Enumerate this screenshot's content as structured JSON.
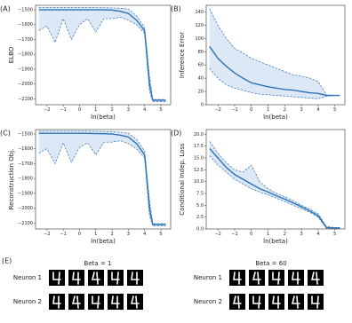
{
  "chart_data": [
    {
      "type": "line",
      "panel_label": "(A)",
      "xlabel": "ln(beta)",
      "ylabel": "ELBO",
      "band_color": "#dde8f6",
      "x": [
        -2.5,
        -2,
        -1.5,
        -1,
        -0.5,
        0,
        0.5,
        1,
        1.5,
        2,
        2.5,
        3,
        3.5,
        4,
        4.3,
        4.5,
        5,
        5.3
      ],
      "series": [
        {
          "color": "#2c72b5",
          "dash": false,
          "values": [
            -1500,
            -1500,
            -1500,
            -1500,
            -1500,
            -1500,
            -1500,
            -1500,
            -1500,
            -1502,
            -1510,
            -1525,
            -1570,
            -1640,
            -2000,
            -2110,
            -2110,
            -2110
          ]
        },
        {
          "color": "#2c72b5",
          "dash": true,
          "values": [
            -1485,
            -1485,
            -1485,
            -1485,
            -1485,
            -1485,
            -1485,
            -1485,
            -1486,
            -1487,
            -1490,
            -1495,
            -1540,
            -1620,
            -1950,
            -2105,
            -2105,
            -2105
          ]
        },
        {
          "color": "#2c72b5",
          "dash": true,
          "values": [
            -1640,
            -1610,
            -1720,
            -1560,
            -1700,
            -1600,
            -1560,
            -1650,
            -1560,
            -1560,
            -1550,
            -1570,
            -1600,
            -1660,
            -2050,
            -2120,
            -2120,
            -2120
          ]
        }
      ],
      "xlim": [
        -2.7,
        5.6
      ],
      "ylim": [
        -2140,
        -1470
      ],
      "xticks": [
        {
          "value": -2,
          "label": "−2"
        },
        {
          "value": -1,
          "label": "−1"
        },
        0,
        1,
        2,
        3,
        4,
        5
      ],
      "yticks": [
        {
          "value": -2100,
          "label": "−2100"
        },
        {
          "value": -2000,
          "label": "−2000"
        },
        {
          "value": -1900,
          "label": "−1900"
        },
        {
          "value": -1800,
          "label": "−1800"
        },
        {
          "value": -1700,
          "label": "−1700"
        },
        {
          "value": -1600,
          "label": "−1600"
        },
        {
          "value": -1500,
          "label": "−1500"
        }
      ]
    },
    {
      "type": "line",
      "panel_label": "(B)",
      "xlabel": "ln(beta)",
      "ylabel": "Inference Error",
      "band_color": "#dde8f6",
      "x": [
        -2.5,
        -2,
        -1.5,
        -1,
        -0.5,
        0,
        0.5,
        1,
        1.5,
        2,
        2.5,
        3,
        3.5,
        4,
        4.5,
        5,
        5.3
      ],
      "series": [
        {
          "color": "#2c72b5",
          "dash": false,
          "values": [
            88,
            70,
            58,
            48,
            40,
            33,
            30,
            27,
            25,
            23,
            22,
            20,
            18,
            17,
            14,
            14,
            14
          ]
        },
        {
          "color": "#2c72b5",
          "dash": true,
          "values": [
            145,
            120,
            100,
            85,
            78,
            70,
            65,
            60,
            55,
            50,
            45,
            43,
            40,
            35,
            15,
            14,
            14
          ]
        },
        {
          "color": "#2c72b5",
          "dash": true,
          "values": [
            55,
            40,
            30,
            25,
            22,
            18,
            16,
            15,
            14,
            13,
            12,
            11,
            10,
            9,
            13,
            14,
            14
          ]
        }
      ],
      "xlim": [
        -2.7,
        5.6
      ],
      "ylim": [
        0,
        150
      ],
      "xticks": [
        {
          "value": -2,
          "label": "−2"
        },
        {
          "value": -1,
          "label": "−1"
        },
        0,
        1,
        2,
        3,
        4,
        5
      ],
      "yticks": [
        0,
        20,
        40,
        60,
        80,
        100,
        120,
        140
      ]
    },
    {
      "type": "line",
      "panel_label": "(C)",
      "xlabel": "ln(beta)",
      "ylabel": "Reconstruction Obj.",
      "band_color": "#dde8f6",
      "x": [
        -2.5,
        -2,
        -1.5,
        -1,
        -0.5,
        0,
        0.5,
        1,
        1.5,
        2,
        2.5,
        3,
        3.5,
        4,
        4.3,
        4.5,
        5,
        5.3
      ],
      "series": [
        {
          "color": "#2c72b5",
          "dash": false,
          "values": [
            -1495,
            -1495,
            -1495,
            -1495,
            -1495,
            -1495,
            -1496,
            -1497,
            -1498,
            -1500,
            -1508,
            -1520,
            -1565,
            -1640,
            -2000,
            -2110,
            -2110,
            -2110
          ]
        },
        {
          "color": "#2c72b5",
          "dash": true,
          "values": [
            -1480,
            -1480,
            -1480,
            -1480,
            -1480,
            -1480,
            -1481,
            -1482,
            -1483,
            -1485,
            -1488,
            -1495,
            -1535,
            -1615,
            -1950,
            -2105,
            -2105,
            -2105
          ]
        },
        {
          "color": "#2c72b5",
          "dash": true,
          "values": [
            -1630,
            -1600,
            -1700,
            -1560,
            -1690,
            -1590,
            -1560,
            -1640,
            -1555,
            -1555,
            -1545,
            -1565,
            -1600,
            -1660,
            -2050,
            -2120,
            -2120,
            -2120
          ]
        }
      ],
      "xlim": [
        -2.7,
        5.6
      ],
      "ylim": [
        -2140,
        -1470
      ],
      "xticks": [
        {
          "value": -2,
          "label": "−2"
        },
        {
          "value": -1,
          "label": "−1"
        },
        0,
        1,
        2,
        3,
        4,
        5
      ],
      "yticks": [
        {
          "value": -2100,
          "label": "−2100"
        },
        {
          "value": -2000,
          "label": "−2000"
        },
        {
          "value": -1900,
          "label": "−1900"
        },
        {
          "value": -1800,
          "label": "−1800"
        },
        {
          "value": -1700,
          "label": "−1700"
        },
        {
          "value": -1600,
          "label": "−1600"
        },
        {
          "value": -1500,
          "label": "−1500"
        }
      ]
    },
    {
      "type": "line",
      "panel_label": "(D)",
      "xlabel": "ln(beta)",
      "ylabel": "Conditional Indep. Loss",
      "band_color": "#dde8f6",
      "x": [
        -2.5,
        -2,
        -1.5,
        -1,
        -0.5,
        0,
        0.5,
        1,
        1.5,
        2,
        2.5,
        3,
        3.5,
        4,
        4.5,
        5,
        5.3
      ],
      "series": [
        {
          "color": "#2c72b5",
          "dash": false,
          "values": [
            17,
            15,
            13,
            11.5,
            10.5,
            9.5,
            8.5,
            7.8,
            7,
            6.3,
            5.5,
            4.7,
            3.8,
            2.8,
            0.3,
            0.2,
            0.2
          ]
        },
        {
          "color": "#2c72b5",
          "dash": true,
          "values": [
            18.5,
            16,
            14,
            12.5,
            12,
            13.5,
            10,
            8.5,
            7.5,
            6.8,
            6,
            5,
            4.2,
            3.2,
            0.5,
            0.3,
            0.3
          ]
        },
        {
          "color": "#2c72b5",
          "dash": true,
          "values": [
            15.5,
            13.5,
            12,
            10.5,
            9.5,
            8.5,
            7.8,
            7.2,
            6.5,
            5.8,
            5,
            4.3,
            3.5,
            2.5,
            0.1,
            0.1,
            0.1
          ]
        }
      ],
      "xlim": [
        -2.7,
        5.6
      ],
      "ylim": [
        0,
        21
      ],
      "xticks": [
        {
          "value": -2,
          "label": "−2"
        },
        {
          "value": -1,
          "label": "−1"
        },
        0,
        1,
        2,
        3,
        4,
        5
      ],
      "yticks": [
        {
          "value": 0,
          "label": "0.0"
        },
        {
          "value": 2.5,
          "label": "2.5"
        },
        {
          "value": 5,
          "label": "5.0"
        },
        {
          "value": 7.5,
          "label": "7.5"
        },
        {
          "value": 10,
          "label": "10.0"
        },
        {
          "value": 12.5,
          "label": "12.5"
        },
        {
          "value": 15,
          "label": "15.0"
        },
        {
          "value": 17.5,
          "label": "17.5"
        },
        {
          "value": 20,
          "label": "20.0"
        }
      ]
    }
  ],
  "panel_e": {
    "label": "(E)",
    "groups": [
      {
        "title": "Beta = 1",
        "rows": [
          "Neuron 1",
          "Neuron 2"
        ]
      },
      {
        "title": "Beta = 60",
        "rows": [
          "Neuron 1",
          "Neuron 2"
        ]
      }
    ]
  }
}
